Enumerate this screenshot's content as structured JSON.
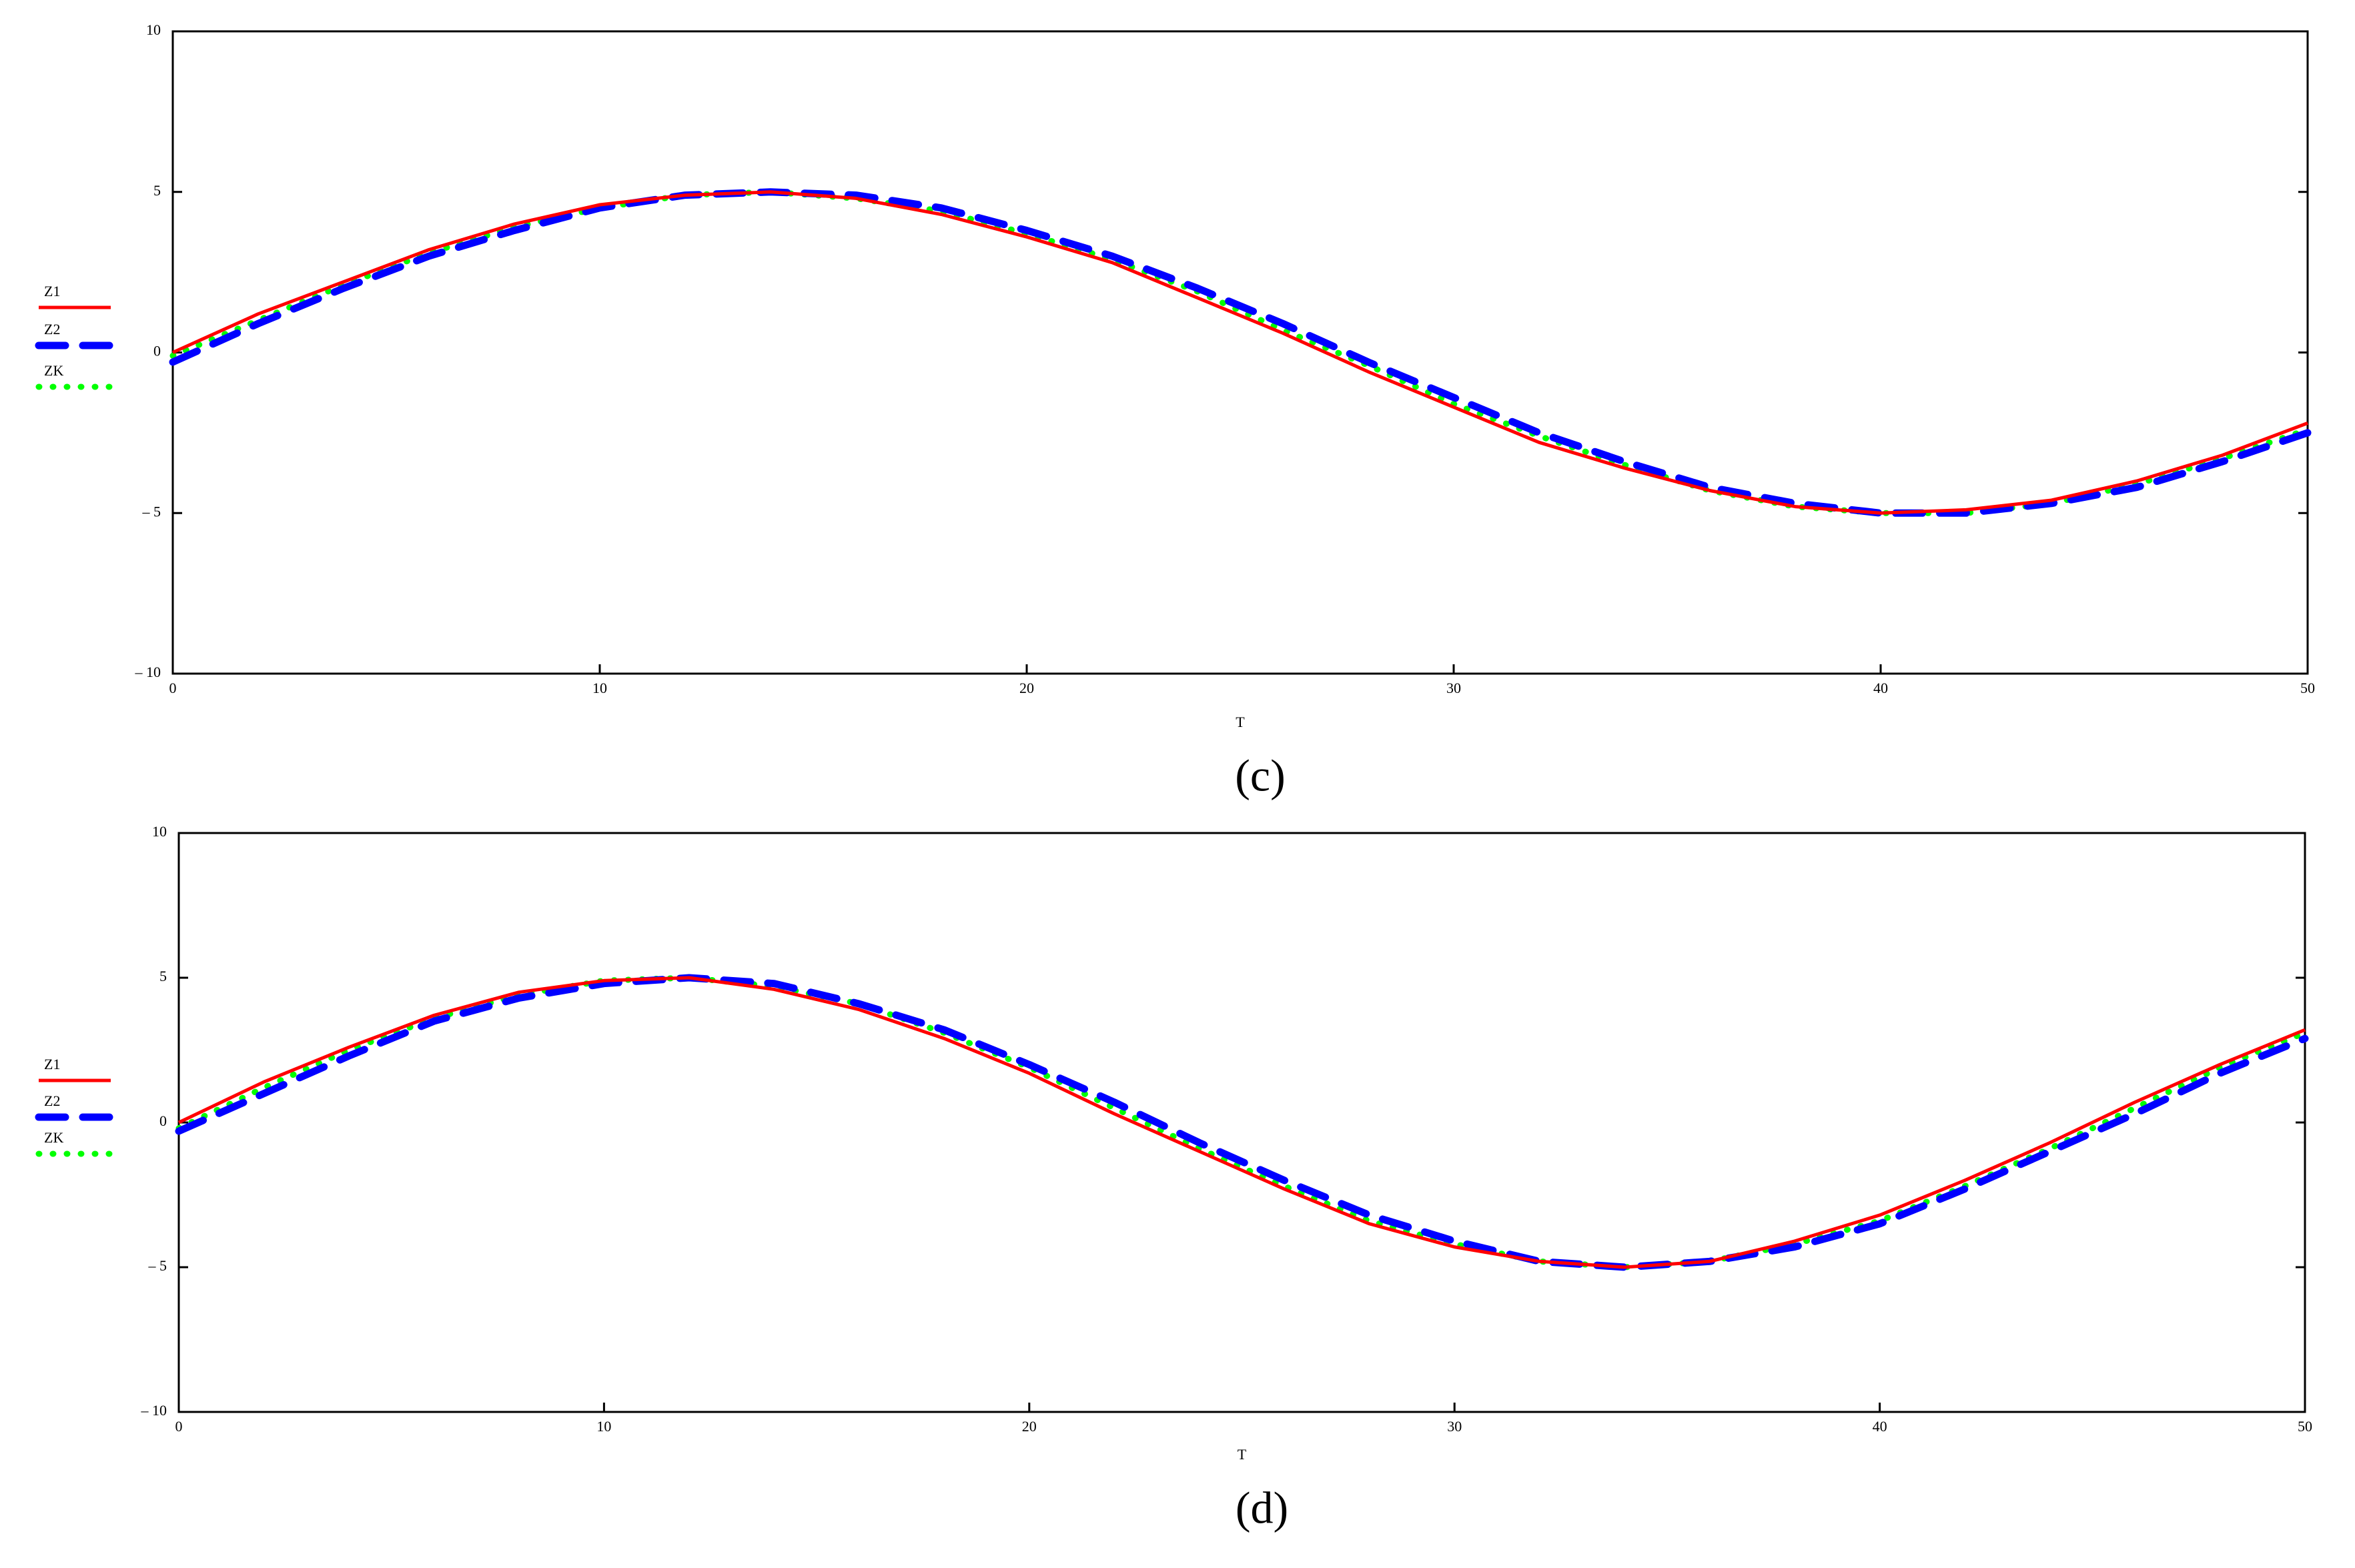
{
  "chart_data": [
    {
      "type": "line",
      "caption": "(c)",
      "x_label": "T",
      "x": [
        0,
        2,
        4,
        6,
        8,
        10,
        12,
        14,
        16,
        18,
        20,
        22,
        24,
        26,
        28,
        30,
        32,
        34,
        36,
        38,
        40,
        42,
        44,
        46,
        48,
        50
      ],
      "series": [
        {
          "name": "Z1",
          "color": "#ff0000",
          "style": "solid",
          "values": [
            0,
            1.2,
            2.2,
            3.2,
            4.0,
            4.6,
            4.9,
            5.0,
            4.8,
            4.3,
            3.6,
            2.8,
            1.7,
            0.6,
            -0.6,
            -1.7,
            -2.8,
            -3.6,
            -4.3,
            -4.8,
            -5.0,
            -4.9,
            -4.6,
            -4.0,
            -3.2,
            -2.2
          ]
        },
        {
          "name": "Z2",
          "color": "#0000ff",
          "style": "dash",
          "values": [
            -0.3,
            0.9,
            2.0,
            3.0,
            3.8,
            4.5,
            4.9,
            5.0,
            4.9,
            4.5,
            3.8,
            3.0,
            2.0,
            0.9,
            -0.3,
            -1.4,
            -2.5,
            -3.4,
            -4.2,
            -4.7,
            -5.0,
            -5.0,
            -4.7,
            -4.2,
            -3.4,
            -2.5
          ]
        },
        {
          "name": "ZK",
          "color": "#00ff00",
          "style": "dot",
          "values": [
            -0.1,
            1.0,
            2.1,
            3.1,
            3.9,
            4.5,
            4.9,
            5.0,
            4.8,
            4.4,
            3.7,
            2.9,
            1.9,
            0.7,
            -0.4,
            -1.6,
            -2.6,
            -3.5,
            -4.3,
            -4.8,
            -5.0,
            -5.0,
            -4.7,
            -4.1,
            -3.3,
            -2.4
          ]
        }
      ],
      "xlim": [
        0,
        50
      ],
      "xticks": [
        0,
        10,
        20,
        30,
        40,
        50
      ],
      "ylim": [
        -10,
        10
      ],
      "yticks": [
        {
          "value": -10,
          "label": "– 10"
        },
        {
          "value": -5,
          "label": "– 5"
        },
        0,
        5,
        10
      ]
    },
    {
      "type": "line",
      "caption": "(d)",
      "x_label": "T",
      "x": [
        0,
        2,
        4,
        6,
        8,
        10,
        12,
        14,
        16,
        18,
        20,
        22,
        24,
        26,
        28,
        30,
        32,
        34,
        36,
        38,
        40,
        42,
        44,
        46,
        48,
        50
      ],
      "series": [
        {
          "name": "Z1",
          "color": "#ff0000",
          "style": "solid",
          "values": [
            0,
            1.4,
            2.6,
            3.7,
            4.5,
            4.9,
            5.0,
            4.6,
            3.9,
            2.9,
            1.7,
            0.3,
            -1.0,
            -2.3,
            -3.5,
            -4.3,
            -4.8,
            -5.0,
            -4.8,
            -4.1,
            -3.2,
            -2.0,
            -0.7,
            0.7,
            2.0,
            3.2
          ]
        },
        {
          "name": "Z2",
          "color": "#0000ff",
          "style": "dash",
          "values": [
            -0.3,
            1.0,
            2.3,
            3.5,
            4.3,
            4.8,
            5.0,
            4.8,
            4.1,
            3.2,
            2.0,
            0.7,
            -0.7,
            -2.0,
            -3.2,
            -4.1,
            -4.8,
            -5.0,
            -4.8,
            -4.3,
            -3.5,
            -2.3,
            -1.0,
            0.3,
            1.7,
            2.9
          ]
        },
        {
          "name": "ZK",
          "color": "#00ff00",
          "style": "dot",
          "values": [
            -0.2,
            1.2,
            2.5,
            3.6,
            4.4,
            4.9,
            5.0,
            4.7,
            4.1,
            3.1,
            1.9,
            0.5,
            -0.9,
            -2.2,
            -3.4,
            -4.2,
            -4.8,
            -5.0,
            -4.8,
            -4.2,
            -3.4,
            -2.2,
            -0.9,
            0.5,
            1.9,
            3.1
          ]
        }
      ],
      "xlim": [
        0,
        50
      ],
      "xticks": [
        0,
        10,
        20,
        30,
        40,
        50
      ],
      "ylim": [
        -10,
        10
      ],
      "yticks": [
        {
          "value": -10,
          "label": "– 10"
        },
        {
          "value": -5,
          "label": "– 5"
        },
        0,
        5,
        10
      ]
    }
  ]
}
